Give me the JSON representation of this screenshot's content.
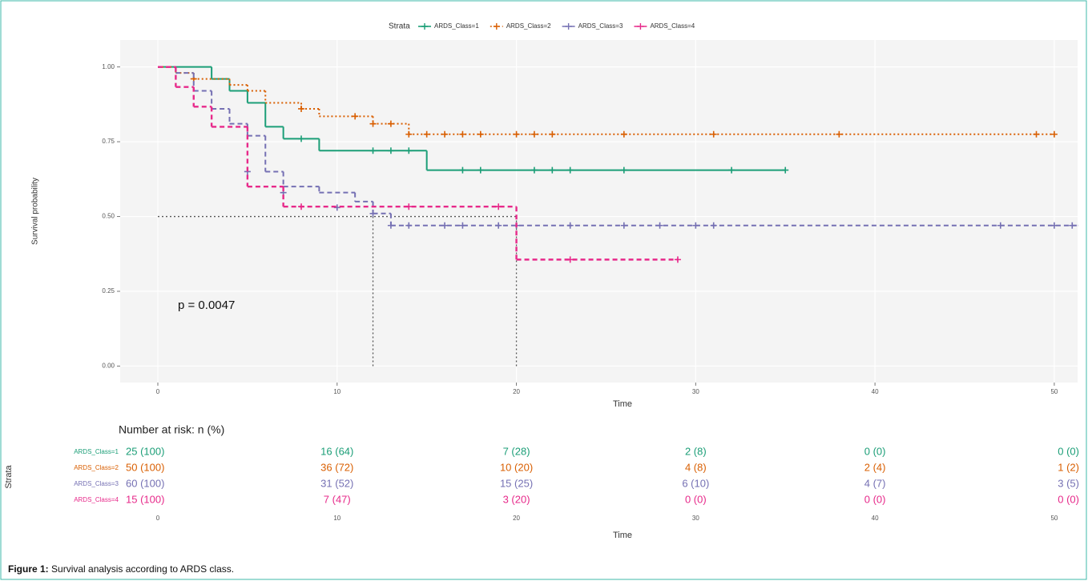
{
  "chart_data": {
    "type": "step",
    "xlabel": "Time",
    "ylabel": "Survival probability",
    "legend_title": "Strata",
    "legend_position": "top",
    "grid": true,
    "annotation": "p = 0.0047",
    "xlim": [
      -2.1,
      51.3
    ],
    "ylim": [
      -0.055,
      1.09
    ],
    "xticks": [
      0,
      10,
      20,
      30,
      40,
      50
    ],
    "yticks": [
      {
        "value": 0,
        "label": "0.00"
      },
      {
        "value": 0.25,
        "label": "0.25"
      },
      {
        "value": 0.5,
        "label": "0.50"
      },
      {
        "value": 0.75,
        "label": "0.75"
      },
      {
        "value": 1,
        "label": "1.00"
      }
    ],
    "median_line": {
      "y": 0.5,
      "x": [
        12,
        20
      ]
    },
    "series": [
      {
        "name": "ARDS_Class=1",
        "color": "#1b9e77",
        "linestyle": "solid",
        "x": [
          0,
          3,
          4,
          5,
          6,
          7,
          9,
          15,
          35
        ],
        "values": [
          1,
          0.96,
          0.92,
          0.88,
          0.8,
          0.76,
          0.72,
          0.655,
          0.655
        ],
        "censor_x": [
          8,
          12,
          13,
          14,
          17,
          18,
          21,
          22,
          23,
          26,
          32,
          35
        ],
        "censor_y": [
          0.76,
          0.72,
          0.72,
          0.72,
          0.655,
          0.655,
          0.655,
          0.655,
          0.655,
          0.655,
          0.655,
          0.655
        ]
      },
      {
        "name": "ARDS_Class=2",
        "color": "#d95f02",
        "linestyle": "dotted",
        "x": [
          0,
          1,
          2,
          4,
          5,
          6,
          8,
          9,
          12,
          14,
          50
        ],
        "values": [
          1,
          0.98,
          0.96,
          0.94,
          0.92,
          0.88,
          0.86,
          0.835,
          0.81,
          0.775,
          0.775
        ],
        "censor_x": [
          2,
          8,
          11,
          12,
          13,
          14,
          15,
          16,
          17,
          18,
          20,
          21,
          22,
          26,
          31,
          38,
          49,
          50
        ],
        "censor_y": [
          0.96,
          0.86,
          0.835,
          0.81,
          0.81,
          0.775,
          0.775,
          0.775,
          0.775,
          0.775,
          0.775,
          0.775,
          0.775,
          0.775,
          0.775,
          0.775,
          0.775,
          0.775
        ]
      },
      {
        "name": "ARDS_Class=3",
        "color": "#7570b3",
        "linestyle": "dashed",
        "x": [
          0,
          1,
          2,
          3,
          4,
          5,
          6,
          7,
          9,
          11,
          12,
          13,
          51.3
        ],
        "values": [
          1,
          0.98,
          0.92,
          0.86,
          0.81,
          0.77,
          0.65,
          0.6,
          0.58,
          0.55,
          0.51,
          0.47,
          0.47
        ],
        "censor_x": [
          5,
          7,
          10,
          12,
          13,
          14,
          16,
          17,
          19,
          20,
          23,
          26,
          28,
          30,
          31,
          47,
          50,
          51
        ],
        "censor_y": [
          0.65,
          0.58,
          0.53,
          0.51,
          0.47,
          0.47,
          0.47,
          0.47,
          0.47,
          0.47,
          0.47,
          0.47,
          0.47,
          0.47,
          0.47,
          0.47,
          0.47,
          0.47
        ]
      },
      {
        "name": "ARDS_Class=4",
        "color": "#e7298a",
        "linestyle": "dashed",
        "x": [
          0,
          1,
          2,
          3,
          5,
          7,
          20,
          29
        ],
        "values": [
          1,
          0.933,
          0.867,
          0.8,
          0.6,
          0.533,
          0.356,
          0.356
        ],
        "censor_x": [
          8,
          14,
          19,
          23,
          29
        ],
        "censor_y": [
          0.533,
          0.533,
          0.533,
          0.356,
          0.356
        ]
      }
    ],
    "risk_table": {
      "title": "Number at risk: n (%)",
      "rows": [
        [
          "25 (100)",
          "16 (64)",
          "7 (28)",
          "2 (8)",
          "0 (0)",
          "0 (0)"
        ],
        [
          "50 (100)",
          "36 (72)",
          "10 (20)",
          "4 (8)",
          "2 (4)",
          "1 (2)"
        ],
        [
          "60 (100)",
          "31 (52)",
          "15 (25)",
          "6 (10)",
          "4 (7)",
          "3 (5)"
        ],
        [
          "15 (100)",
          "7 (47)",
          "3 (20)",
          "0 (0)",
          "0 (0)",
          "0 (0)"
        ]
      ]
    }
  },
  "caption": {
    "label": "Figure 1:",
    "text": "Survival analysis according to ARDS class."
  }
}
